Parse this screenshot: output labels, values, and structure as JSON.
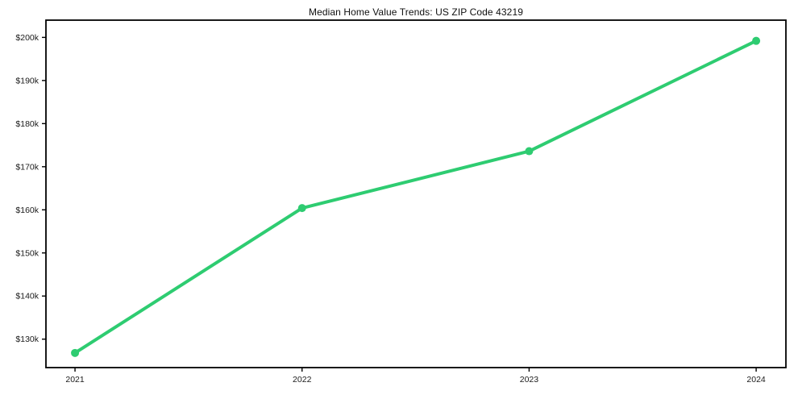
{
  "chart_data": {
    "type": "line",
    "title": "Median Home Value Trends: US ZIP Code 43219",
    "series": [
      {
        "name": "Median home value",
        "x": [
          2021,
          2022,
          2023,
          2024
        ],
        "values": [
          126800,
          160400,
          173600,
          199200
        ]
      }
    ],
    "xlabel": "",
    "ylabel": "",
    "x_ticks": [
      2021,
      2022,
      2023,
      2024
    ],
    "x_tick_labels": [
      "2021",
      "2022",
      "2023",
      "2024"
    ],
    "y_ticks": [
      130000,
      140000,
      150000,
      160000,
      170000,
      180000,
      190000,
      200000
    ],
    "y_tick_labels": [
      "$130k",
      "$140k",
      "$150k",
      "$160k",
      "$170k",
      "$180k",
      "$190k",
      "$200k"
    ],
    "xlim": [
      2020.872,
      2024.131
    ],
    "ylim": [
      123400,
      204000
    ],
    "grid": false,
    "legend_position": "none",
    "line_color": "#2ecc71",
    "marker": "circle",
    "marker_radius": 5,
    "line_width": 4,
    "axis_color": "#000000",
    "background": "#ffffff"
  }
}
